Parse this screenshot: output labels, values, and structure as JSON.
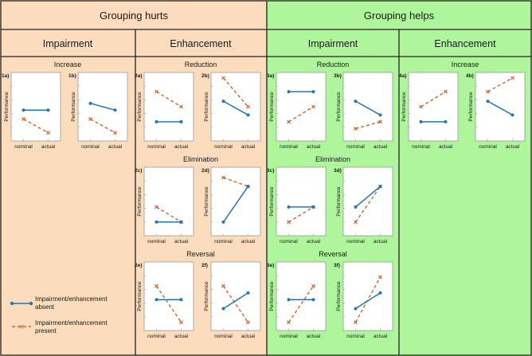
{
  "colors": {
    "hurts_bg": "#fbdcbd",
    "helps_bg": "#aef59c",
    "border": "#222222",
    "absent": "#2176b5",
    "present": "#d2612a"
  },
  "headers": {
    "hurts": "Grouping hurts",
    "helps": "Grouping helps",
    "sub": [
      "Impairment",
      "Enhancement",
      "Impairment",
      "Enhancement"
    ]
  },
  "captions": [
    "Increase",
    "Reduction",
    "Elimination",
    "Reversal",
    "Reduction",
    "Elimination",
    "Reversal",
    "Increase"
  ],
  "legend": {
    "absent": [
      "Impairment/enhancement",
      "absent"
    ],
    "present": [
      "Impairment/enhancement",
      "present"
    ]
  },
  "axis": {
    "ylabel": "Performance",
    "xticks": [
      "nominal",
      "actual"
    ]
  },
  "chart_data": [
    {
      "id": "1a)",
      "type": "line",
      "ylim": [
        0,
        1
      ],
      "categories": [
        "nominal",
        "actual"
      ],
      "series": [
        {
          "name": "absent",
          "values": [
            0.45,
            0.45
          ]
        },
        {
          "name": "present",
          "values": [
            0.32,
            0.12
          ]
        }
      ]
    },
    {
      "id": "1b)",
      "type": "line",
      "ylim": [
        0,
        1
      ],
      "categories": [
        "nominal",
        "actual"
      ],
      "series": [
        {
          "name": "absent",
          "values": [
            0.55,
            0.45
          ]
        },
        {
          "name": "present",
          "values": [
            0.32,
            0.12
          ]
        }
      ]
    },
    {
      "id": "2a)",
      "type": "line",
      "ylim": [
        0,
        1
      ],
      "categories": [
        "nominal",
        "actual"
      ],
      "series": [
        {
          "name": "absent",
          "values": [
            0.28,
            0.28
          ]
        },
        {
          "name": "present",
          "values": [
            0.72,
            0.5
          ]
        }
      ]
    },
    {
      "id": "2b)",
      "type": "line",
      "ylim": [
        0,
        1
      ],
      "categories": [
        "nominal",
        "actual"
      ],
      "series": [
        {
          "name": "absent",
          "values": [
            0.58,
            0.38
          ]
        },
        {
          "name": "present",
          "values": [
            0.92,
            0.5
          ]
        }
      ]
    },
    {
      "id": "2c)",
      "type": "line",
      "ylim": [
        0,
        1
      ],
      "categories": [
        "nominal",
        "actual"
      ],
      "series": [
        {
          "name": "absent",
          "values": [
            0.2,
            0.2
          ]
        },
        {
          "name": "present",
          "values": [
            0.42,
            0.2
          ]
        }
      ]
    },
    {
      "id": "2d)",
      "type": "line",
      "ylim": [
        0,
        1
      ],
      "categories": [
        "nominal",
        "actual"
      ],
      "series": [
        {
          "name": "absent",
          "values": [
            0.2,
            0.72
          ]
        },
        {
          "name": "present",
          "values": [
            0.85,
            0.72
          ]
        }
      ]
    },
    {
      "id": "2e)",
      "type": "line",
      "ylim": [
        0,
        1
      ],
      "categories": [
        "nominal",
        "actual"
      ],
      "series": [
        {
          "name": "absent",
          "values": [
            0.45,
            0.45
          ]
        },
        {
          "name": "present",
          "values": [
            0.65,
            0.12
          ]
        }
      ]
    },
    {
      "id": "2f)",
      "type": "line",
      "ylim": [
        0,
        1
      ],
      "categories": [
        "nominal",
        "actual"
      ],
      "series": [
        {
          "name": "absent",
          "values": [
            0.32,
            0.55
          ]
        },
        {
          "name": "present",
          "values": [
            0.65,
            0.12
          ]
        }
      ]
    },
    {
      "id": "3a)",
      "type": "line",
      "ylim": [
        0,
        1
      ],
      "categories": [
        "nominal",
        "actual"
      ],
      "series": [
        {
          "name": "absent",
          "values": [
            0.72,
            0.72
          ]
        },
        {
          "name": "present",
          "values": [
            0.28,
            0.5
          ]
        }
      ]
    },
    {
      "id": "3b)",
      "type": "line",
      "ylim": [
        0,
        1
      ],
      "categories": [
        "nominal",
        "actual"
      ],
      "series": [
        {
          "name": "absent",
          "values": [
            0.58,
            0.38
          ]
        },
        {
          "name": "present",
          "values": [
            0.18,
            0.28
          ]
        }
      ]
    },
    {
      "id": "3c)",
      "type": "line",
      "ylim": [
        0,
        1
      ],
      "categories": [
        "nominal",
        "actual"
      ],
      "series": [
        {
          "name": "absent",
          "values": [
            0.42,
            0.42
          ]
        },
        {
          "name": "present",
          "values": [
            0.2,
            0.42
          ]
        }
      ]
    },
    {
      "id": "3d)",
      "type": "line",
      "ylim": [
        0,
        1
      ],
      "categories": [
        "nominal",
        "actual"
      ],
      "series": [
        {
          "name": "absent",
          "values": [
            0.42,
            0.72
          ]
        },
        {
          "name": "present",
          "values": [
            0.2,
            0.72
          ]
        }
      ]
    },
    {
      "id": "3e)",
      "type": "line",
      "ylim": [
        0,
        1
      ],
      "categories": [
        "nominal",
        "actual"
      ],
      "series": [
        {
          "name": "absent",
          "values": [
            0.45,
            0.45
          ]
        },
        {
          "name": "present",
          "values": [
            0.12,
            0.65
          ]
        }
      ]
    },
    {
      "id": "3f)",
      "type": "line",
      "ylim": [
        0,
        1
      ],
      "categories": [
        "nominal",
        "actual"
      ],
      "series": [
        {
          "name": "absent",
          "values": [
            0.32,
            0.55
          ]
        },
        {
          "name": "present",
          "values": [
            0.12,
            0.78
          ]
        }
      ]
    },
    {
      "id": "4a)",
      "type": "line",
      "ylim": [
        0,
        1
      ],
      "categories": [
        "nominal",
        "actual"
      ],
      "series": [
        {
          "name": "absent",
          "values": [
            0.28,
            0.28
          ]
        },
        {
          "name": "present",
          "values": [
            0.5,
            0.72
          ]
        }
      ]
    },
    {
      "id": "4b)",
      "type": "line",
      "ylim": [
        0,
        1
      ],
      "categories": [
        "nominal",
        "actual"
      ],
      "series": [
        {
          "name": "absent",
          "values": [
            0.58,
            0.38
          ]
        },
        {
          "name": "present",
          "values": [
            0.72,
            0.92
          ]
        }
      ]
    }
  ]
}
